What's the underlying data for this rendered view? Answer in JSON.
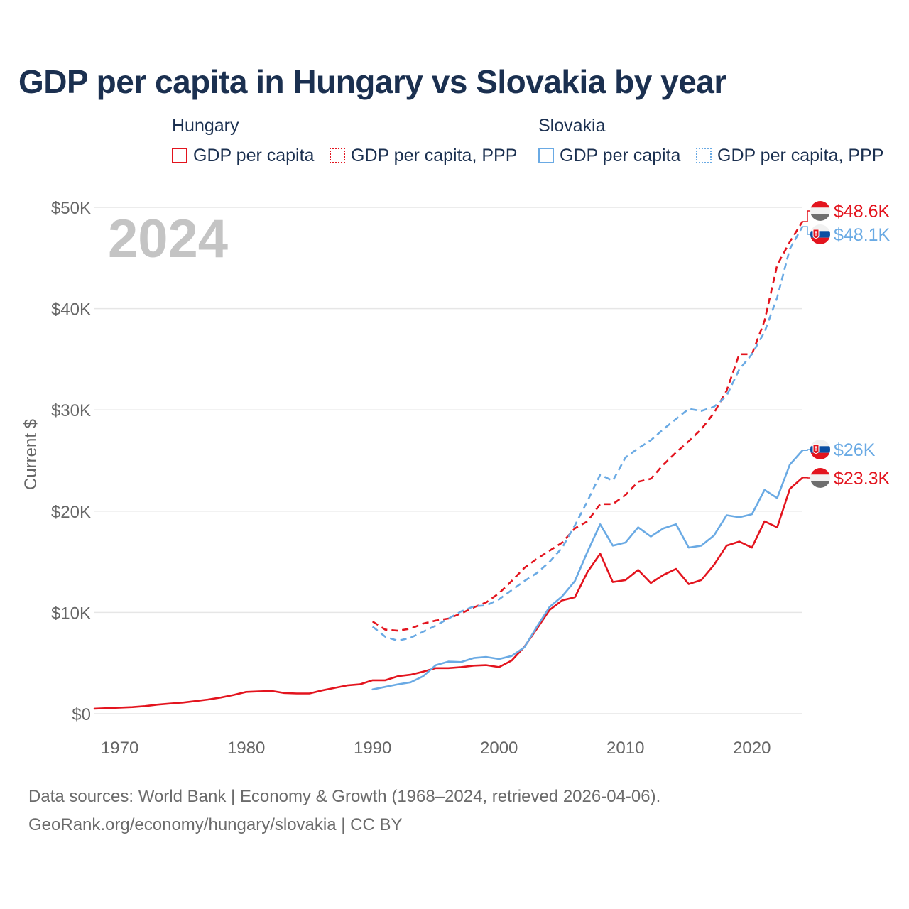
{
  "title": "GDP per capita in Hungary vs Slovakia by year",
  "legend": {
    "groups": [
      {
        "name": "Hungary",
        "items": [
          {
            "label": "GDP per capita",
            "style": "solid"
          },
          {
            "label": "GDP per capita, PPP",
            "style": "dotted"
          }
        ]
      },
      {
        "name": "Slovakia",
        "items": [
          {
            "label": "GDP per capita",
            "style": "solid"
          },
          {
            "label": "GDP per capita, PPP",
            "style": "dotted"
          }
        ]
      }
    ]
  },
  "colors": {
    "hungary": "#e3141e",
    "slovakia": "#6aaae4",
    "title": "#1b3050",
    "year_watermark": "#c4c4c4",
    "grid": "#e6e6e6",
    "axis_text": "#666666"
  },
  "chart_data": {
    "type": "line",
    "title": "GDP per capita in Hungary vs Slovakia by year",
    "current_year_label": "2024",
    "ylabel": "Current $",
    "xlabel": "",
    "xlim": [
      1968,
      2024
    ],
    "ylim": [
      0,
      50000
    ],
    "x_ticks": [
      {
        "value": 1970,
        "label": "1970"
      },
      {
        "value": 1980,
        "label": "1980"
      },
      {
        "value": 1990,
        "label": "1990"
      },
      {
        "value": 2000,
        "label": "2000"
      },
      {
        "value": 2010,
        "label": "2010"
      },
      {
        "value": 2020,
        "label": "2020"
      }
    ],
    "y_ticks": [
      {
        "value": 0,
        "label": "$0"
      },
      {
        "value": 10000,
        "label": "$10K"
      },
      {
        "value": 20000,
        "label": "$20K"
      },
      {
        "value": 30000,
        "label": "$30K"
      },
      {
        "value": 40000,
        "label": "$40K"
      },
      {
        "value": 50000,
        "label": "$50K"
      }
    ],
    "grid": true,
    "series": [
      {
        "name": "Hungary GDP per capita",
        "country": "hungary",
        "dashed": false,
        "end_label": "$23.3K",
        "flag": "hungary",
        "points": [
          [
            1968,
            500
          ],
          [
            1969,
            550
          ],
          [
            1970,
            600
          ],
          [
            1971,
            650
          ],
          [
            1972,
            750
          ],
          [
            1973,
            900
          ],
          [
            1974,
            1000
          ],
          [
            1975,
            1100
          ],
          [
            1976,
            1250
          ],
          [
            1977,
            1400
          ],
          [
            1978,
            1600
          ],
          [
            1979,
            1850
          ],
          [
            1980,
            2150
          ],
          [
            1981,
            2200
          ],
          [
            1982,
            2250
          ],
          [
            1983,
            2050
          ],
          [
            1984,
            2000
          ],
          [
            1985,
            2000
          ],
          [
            1986,
            2300
          ],
          [
            1987,
            2550
          ],
          [
            1988,
            2800
          ],
          [
            1989,
            2900
          ],
          [
            1990,
            3300
          ],
          [
            1991,
            3300
          ],
          [
            1992,
            3700
          ],
          [
            1993,
            3850
          ],
          [
            1994,
            4150
          ],
          [
            1995,
            4500
          ],
          [
            1996,
            4500
          ],
          [
            1997,
            4600
          ],
          [
            1998,
            4750
          ],
          [
            1999,
            4800
          ],
          [
            2000,
            4600
          ],
          [
            2001,
            5250
          ],
          [
            2002,
            6600
          ],
          [
            2003,
            8400
          ],
          [
            2004,
            10250
          ],
          [
            2005,
            11200
          ],
          [
            2006,
            11500
          ],
          [
            2007,
            14000
          ],
          [
            2008,
            15800
          ],
          [
            2009,
            13000
          ],
          [
            2010,
            13200
          ],
          [
            2011,
            14200
          ],
          [
            2012,
            12900
          ],
          [
            2013,
            13700
          ],
          [
            2014,
            14300
          ],
          [
            2015,
            12800
          ],
          [
            2016,
            13200
          ],
          [
            2017,
            14700
          ],
          [
            2018,
            16600
          ],
          [
            2019,
            17000
          ],
          [
            2020,
            16400
          ],
          [
            2021,
            19000
          ],
          [
            2022,
            18400
          ],
          [
            2023,
            22200
          ],
          [
            2024,
            23300
          ]
        ]
      },
      {
        "name": "Hungary GDP per capita, PPP",
        "country": "hungary",
        "dashed": true,
        "end_label": "$48.6K",
        "flag": "hungary",
        "points": [
          [
            1990,
            9100
          ],
          [
            1991,
            8300
          ],
          [
            1992,
            8200
          ],
          [
            1993,
            8400
          ],
          [
            1994,
            8900
          ],
          [
            1995,
            9200
          ],
          [
            1996,
            9400
          ],
          [
            1997,
            9900
          ],
          [
            1998,
            10500
          ],
          [
            1999,
            11000
          ],
          [
            2000,
            11900
          ],
          [
            2001,
            13100
          ],
          [
            2002,
            14400
          ],
          [
            2003,
            15300
          ],
          [
            2004,
            16100
          ],
          [
            2005,
            16900
          ],
          [
            2006,
            18300
          ],
          [
            2007,
            19000
          ],
          [
            2008,
            20700
          ],
          [
            2009,
            20700
          ],
          [
            2010,
            21600
          ],
          [
            2011,
            22900
          ],
          [
            2012,
            23200
          ],
          [
            2013,
            24600
          ],
          [
            2014,
            25800
          ],
          [
            2015,
            26900
          ],
          [
            2016,
            28100
          ],
          [
            2017,
            29700
          ],
          [
            2018,
            31900
          ],
          [
            2019,
            35500
          ],
          [
            2020,
            35500
          ],
          [
            2021,
            38800
          ],
          [
            2022,
            44300
          ],
          [
            2023,
            46600
          ],
          [
            2024,
            48600
          ]
        ]
      },
      {
        "name": "Slovakia GDP per capita",
        "country": "slovakia",
        "dashed": false,
        "end_label": "$26K",
        "flag": "slovakia",
        "points": [
          [
            1990,
            2400
          ],
          [
            1991,
            2650
          ],
          [
            1992,
            2900
          ],
          [
            1993,
            3100
          ],
          [
            1994,
            3700
          ],
          [
            1995,
            4800
          ],
          [
            1996,
            5150
          ],
          [
            1997,
            5100
          ],
          [
            1998,
            5500
          ],
          [
            1999,
            5600
          ],
          [
            2000,
            5400
          ],
          [
            2001,
            5700
          ],
          [
            2002,
            6550
          ],
          [
            2003,
            8600
          ],
          [
            2004,
            10550
          ],
          [
            2005,
            11600
          ],
          [
            2006,
            13100
          ],
          [
            2007,
            16000
          ],
          [
            2008,
            18700
          ],
          [
            2009,
            16600
          ],
          [
            2010,
            16900
          ],
          [
            2011,
            18400
          ],
          [
            2012,
            17500
          ],
          [
            2013,
            18300
          ],
          [
            2014,
            18700
          ],
          [
            2015,
            16400
          ],
          [
            2016,
            16600
          ],
          [
            2017,
            17600
          ],
          [
            2018,
            19600
          ],
          [
            2019,
            19400
          ],
          [
            2020,
            19700
          ],
          [
            2021,
            22100
          ],
          [
            2022,
            21300
          ],
          [
            2023,
            24600
          ],
          [
            2024,
            26000
          ]
        ]
      },
      {
        "name": "Slovakia GDP per capita, PPP",
        "country": "slovakia",
        "dashed": true,
        "end_label": "$48.1K",
        "flag": "slovakia",
        "points": [
          [
            1990,
            8600
          ],
          [
            1991,
            7600
          ],
          [
            1992,
            7200
          ],
          [
            1993,
            7500
          ],
          [
            1994,
            8100
          ],
          [
            1995,
            8700
          ],
          [
            1996,
            9400
          ],
          [
            1997,
            10100
          ],
          [
            1998,
            10600
          ],
          [
            1999,
            10700
          ],
          [
            2000,
            11300
          ],
          [
            2001,
            12200
          ],
          [
            2002,
            13100
          ],
          [
            2003,
            13900
          ],
          [
            2004,
            15000
          ],
          [
            2005,
            16400
          ],
          [
            2006,
            18600
          ],
          [
            2007,
            21000
          ],
          [
            2008,
            23600
          ],
          [
            2009,
            23000
          ],
          [
            2010,
            25300
          ],
          [
            2011,
            26200
          ],
          [
            2012,
            27000
          ],
          [
            2013,
            28100
          ],
          [
            2014,
            29100
          ],
          [
            2015,
            30100
          ],
          [
            2016,
            29900
          ],
          [
            2017,
            30300
          ],
          [
            2018,
            31400
          ],
          [
            2019,
            34000
          ],
          [
            2020,
            35500
          ],
          [
            2021,
            37700
          ],
          [
            2022,
            41100
          ],
          [
            2023,
            45900
          ],
          [
            2024,
            48100
          ]
        ]
      }
    ]
  },
  "footer": {
    "line1": "Data sources: World Bank | Economy & Growth (1968–2024, retrieved 2026-04-06).",
    "line2": "GeoRank.org/economy/hungary/slovakia | CC BY"
  }
}
